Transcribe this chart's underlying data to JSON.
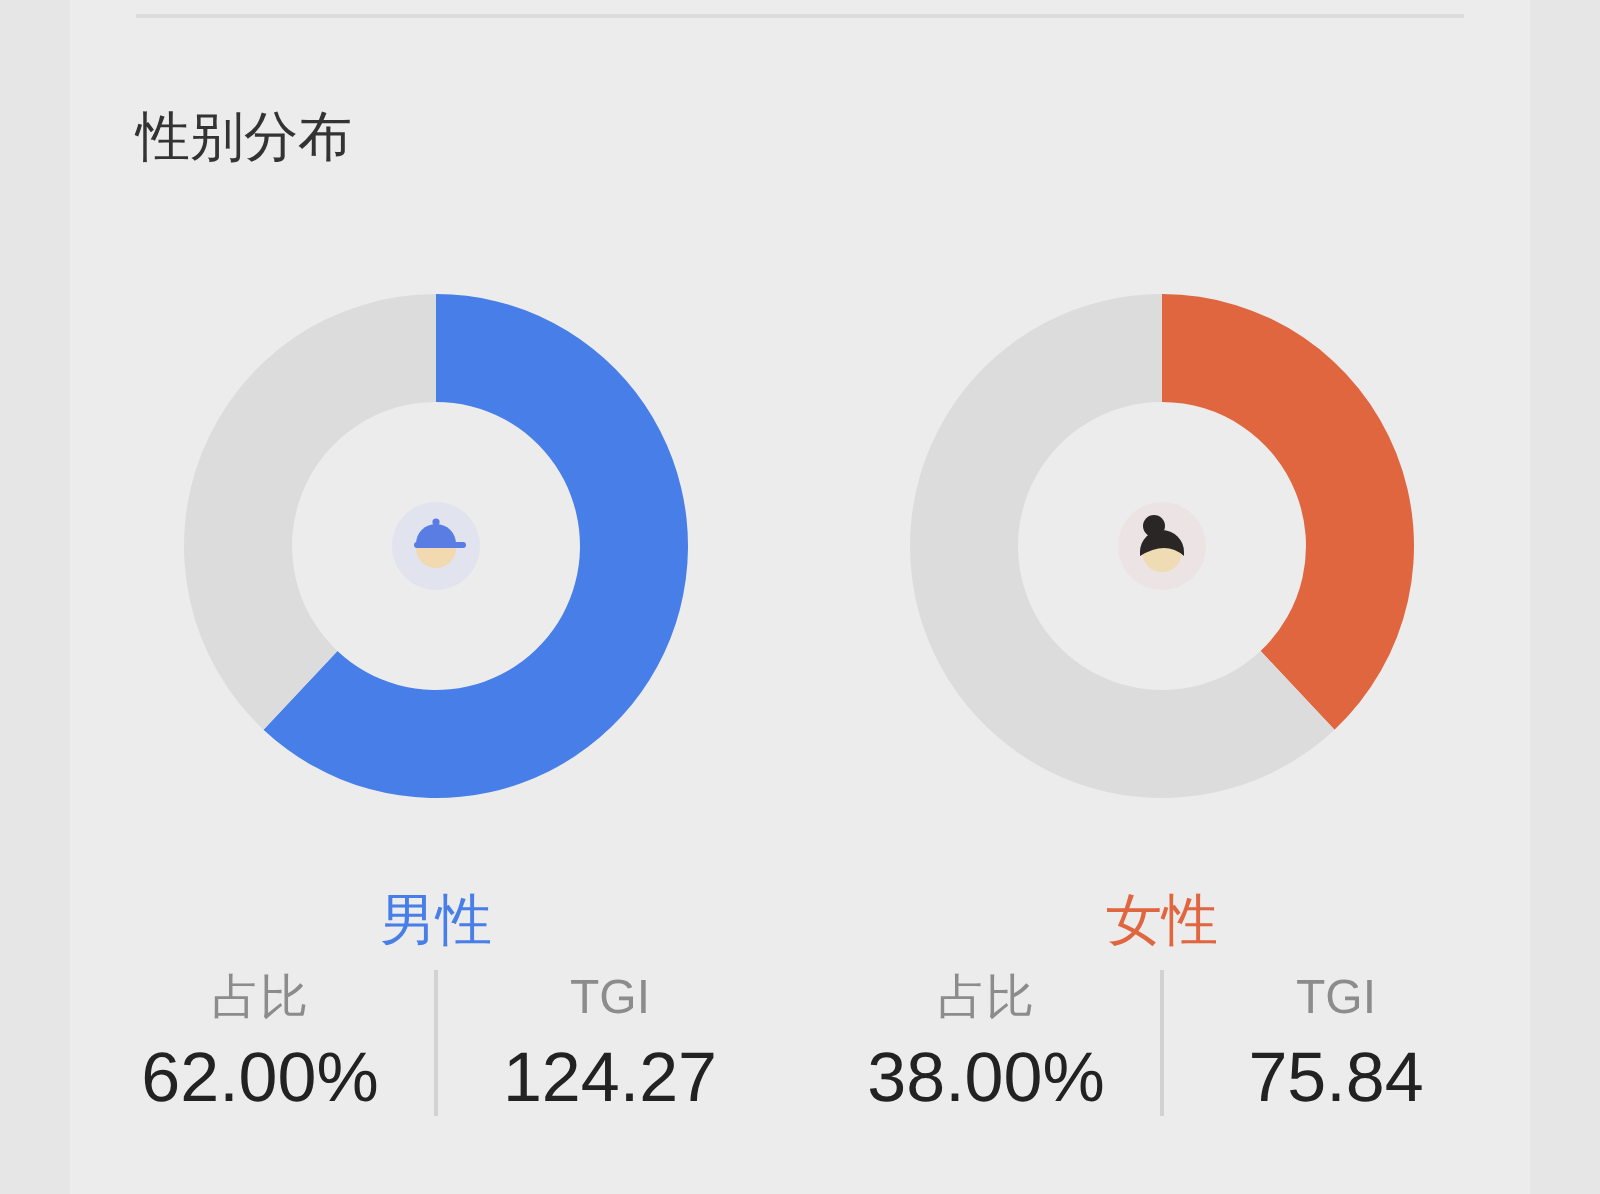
{
  "chart_data": [
    {
      "type": "donut",
      "title": "性别分布",
      "subtitle": "男性",
      "categories": [
        null,
        null
      ],
      "values": [
        62,
        38
      ],
      "colors": [
        "#477ee8",
        "#dcdcdc"
      ],
      "annotations": [
        "占比",
        "62.00%",
        "TGI",
        "124.27"
      ]
    },
    {
      "type": "donut",
      "subtitle": "女性",
      "categories": [
        null,
        null
      ],
      "values": [
        38,
        62
      ],
      "colors": [
        "#e0663f",
        "#dcdcdc"
      ],
      "annotations": [
        "占比",
        "38.00%",
        "TGI",
        "75.84"
      ]
    }
  ]
}
